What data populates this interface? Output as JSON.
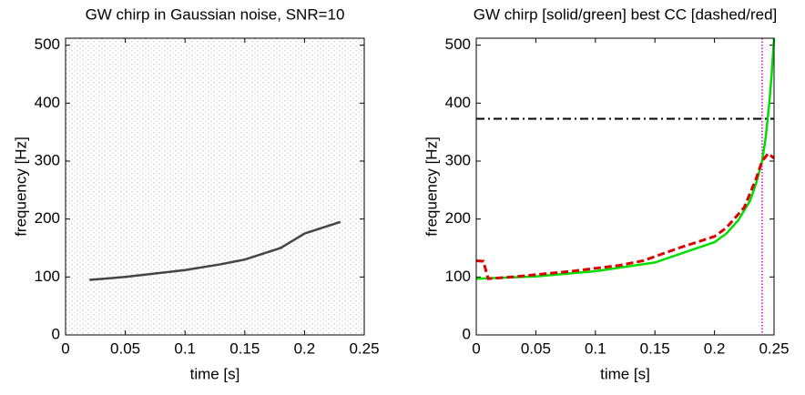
{
  "chart_data": [
    {
      "type": "line",
      "title": "GW chirp in Gaussian noise, SNR=10",
      "x_label": "time [s]",
      "y_label": "frequency [Hz]",
      "xlim": [
        0,
        0.25
      ],
      "ylim": [
        0,
        512
      ],
      "xticks": [
        0,
        0.05,
        0.1,
        0.15,
        0.2,
        0.25
      ],
      "yticks": [
        0,
        100,
        200,
        300,
        400,
        500
      ],
      "series": [
        {
          "color": "#444444",
          "dash": "solid",
          "x": [
            0.02,
            0.05,
            0.1,
            0.13,
            0.15,
            0.18,
            0.2,
            0.23
          ],
          "values": [
            95,
            100,
            112,
            122,
            130,
            150,
            175,
            195
          ]
        }
      ]
    },
    {
      "type": "line",
      "title": "GW chirp [solid/green] best CC [dashed/red]",
      "x_label": "time [s]",
      "y_label": "frequency [Hz]",
      "xlim": [
        0,
        0.25
      ],
      "ylim": [
        0,
        512
      ],
      "xticks": [
        0,
        0.05,
        0.1,
        0.15,
        0.2,
        0.25
      ],
      "yticks": [
        0,
        100,
        200,
        300,
        400,
        500
      ],
      "hline": 373,
      "hline_color": "#000000",
      "vline": 0.24,
      "vline_color": "#cc00cc",
      "series": [
        {
          "color": "#00dd00",
          "dash": "solid",
          "x": [
            0,
            0.05,
            0.1,
            0.15,
            0.2,
            0.21,
            0.22,
            0.23,
            0.235,
            0.24,
            0.243,
            0.246,
            0.248,
            0.25
          ],
          "values": [
            97,
            101,
            110,
            125,
            160,
            175,
            198,
            232,
            262,
            300,
            340,
            400,
            450,
            512
          ]
        },
        {
          "color": "#dd0000",
          "dash": "dashed",
          "x": [
            0,
            0.006,
            0.01,
            0.03,
            0.08,
            0.12,
            0.14,
            0.17,
            0.2,
            0.21,
            0.225,
            0.235,
            0.24,
            0.245,
            0.25
          ],
          "values": [
            128,
            127,
            97,
            100,
            110,
            120,
            128,
            150,
            170,
            185,
            220,
            270,
            300,
            313,
            305
          ]
        }
      ]
    }
  ]
}
